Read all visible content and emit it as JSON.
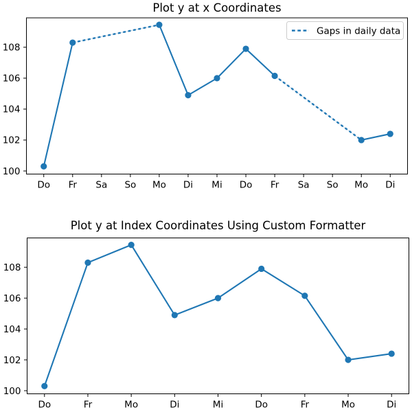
{
  "figure": {
    "background_color": "#ffffff",
    "line_color": "#1f77b4",
    "gap_underlay_color": "#ccdcea",
    "spine_color": "#000000",
    "legend_border_color": "#cccccc",
    "legend_background_color": "#ffffff"
  },
  "chart_data": [
    {
      "type": "line",
      "title": "Plot y at x Coordinates",
      "xlabel": "",
      "ylabel": "",
      "x_tick_labels": [
        "Do",
        "Fr",
        "Sa",
        "So",
        "Mo",
        "Di",
        "Mi",
        "Do",
        "Fr",
        "Sa",
        "So",
        "Mo",
        "Di"
      ],
      "x_tick_positions": [
        0,
        1,
        2,
        3,
        4,
        5,
        6,
        7,
        8,
        9,
        10,
        11,
        12
      ],
      "y_ticks": [
        100,
        102,
        104,
        106,
        108
      ],
      "xlim": [
        -0.6,
        12.6
      ],
      "ylim": [
        99.8,
        109.9
      ],
      "grid": false,
      "series": [
        {
          "marker": "o",
          "line_style": "solid with dashed gap segments",
          "x": [
            0,
            1,
            4,
            5,
            6,
            7,
            8,
            11,
            12
          ],
          "y": [
            100.3,
            108.3,
            109.45,
            104.9,
            106.0,
            107.9,
            106.15,
            102.0,
            102.4
          ],
          "gap_segments_between_point_indices": [
            [
              1,
              2
            ],
            [
              6,
              7
            ]
          ]
        }
      ],
      "legend": {
        "label": "Gaps in daily data",
        "line_style": "dashed",
        "position": "upper right"
      }
    },
    {
      "type": "line",
      "title": "Plot y at Index Coordinates Using Custom Formatter",
      "xlabel": "",
      "ylabel": "",
      "x_tick_labels": [
        "Do",
        "Fr",
        "Mo",
        "Di",
        "Mi",
        "Do",
        "Fr",
        "Mo",
        "Di"
      ],
      "x_tick_positions": [
        0,
        1,
        2,
        3,
        4,
        5,
        6,
        7,
        8
      ],
      "y_ticks": [
        100,
        102,
        104,
        106,
        108
      ],
      "xlim": [
        -0.4,
        8.4
      ],
      "ylim": [
        99.8,
        109.9
      ],
      "grid": false,
      "series": [
        {
          "marker": "o",
          "line_style": "solid",
          "x": [
            0,
            1,
            2,
            3,
            4,
            5,
            6,
            7,
            8
          ],
          "y": [
            100.3,
            108.3,
            109.45,
            104.9,
            106.0,
            107.9,
            106.15,
            102.0,
            102.4
          ],
          "gap_segments_between_point_indices": []
        }
      ],
      "legend": null
    }
  ]
}
